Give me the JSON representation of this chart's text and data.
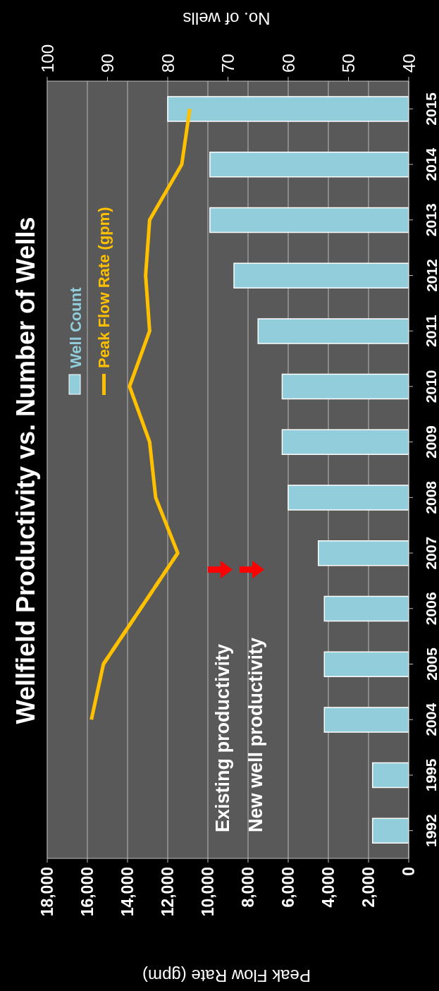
{
  "chart_data": {
    "type": "bar",
    "orientation": "horizontal",
    "title": "Wellfield Productivity vs. Number of Wells",
    "xlabel": "Peak Flow Rate (gpm)",
    "x2label": "No. of wells",
    "categories": [
      "2015",
      "2014",
      "2013",
      "2012",
      "2011",
      "2010",
      "2009",
      "2008",
      "2007",
      "2006",
      "2005",
      "2004",
      "1995",
      "1992"
    ],
    "series": [
      {
        "name": "Well Count",
        "axis": "x2",
        "color": "#92cddc",
        "values": [
          80,
          73,
          73,
          69,
          65,
          61,
          61,
          60,
          55,
          54,
          54,
          54,
          46,
          46
        ]
      },
      {
        "name": "Peak Flow Rate (gpm)",
        "type": "line",
        "color": "#ffc000",
        "line_style": "solid",
        "values": [
          10900,
          11300,
          12900,
          13100,
          12900,
          13900,
          12900,
          12600,
          11500,
          null,
          15200,
          15800,
          null,
          null
        ]
      },
      {
        "type": "line",
        "color": "#ffc000",
        "line_style": "dashed",
        "values": [
          null,
          null,
          null,
          null,
          null,
          null,
          null,
          null,
          11500,
          null,
          15200,
          null,
          null,
          null
        ]
      }
    ],
    "xlim": [
      18000,
      0
    ],
    "xticks": [
      {
        "value": 18000,
        "label": "18,000"
      },
      {
        "value": 16000,
        "label": "16,000"
      },
      {
        "value": 14000,
        "label": "14,000"
      },
      {
        "value": 12000,
        "label": "12,000"
      },
      {
        "value": 10000,
        "label": "10,000"
      },
      {
        "value": 8000,
        "label": "8,000"
      },
      {
        "value": 6000,
        "label": "6,000"
      },
      {
        "value": 4000,
        "label": "4,000"
      },
      {
        "value": 2000,
        "label": "2,000"
      },
      0
    ],
    "x2lim": [
      100,
      40
    ],
    "x2ticks": [
      100,
      90,
      80,
      70,
      60,
      50,
      40
    ],
    "grid": "x",
    "legend": "top left",
    "marker": "none",
    "annotations": [
      "Existing productivity",
      "New well productivity"
    ]
  }
}
